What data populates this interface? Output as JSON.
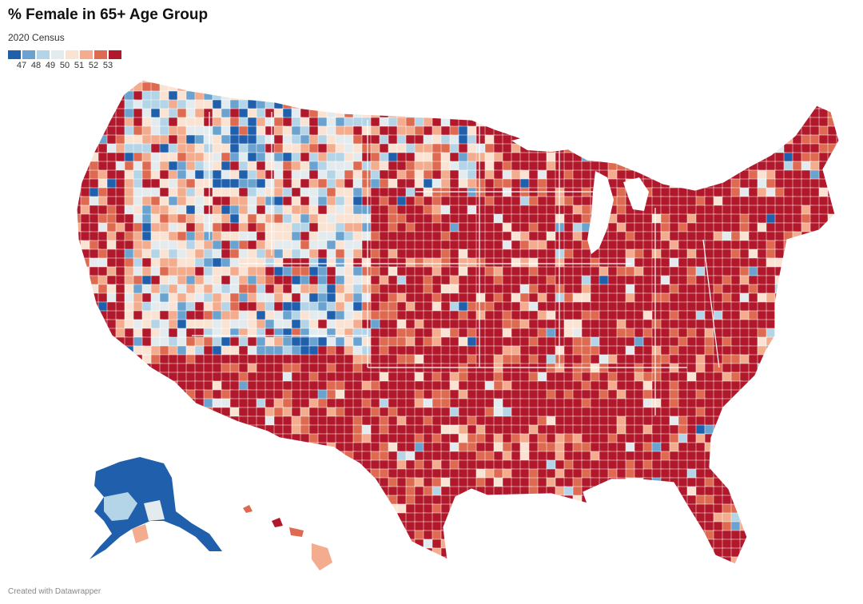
{
  "header": {
    "title": "% Female in 65+ Age Group",
    "subtitle": "2020 Census"
  },
  "legend": {
    "colors": [
      "#1f5fab",
      "#6aa3d0",
      "#b4d4e7",
      "#e4ebee",
      "#fbe3d4",
      "#f3ac8d",
      "#de6a51",
      "#b2182b"
    ],
    "labels": [
      "47",
      "48",
      "49",
      "50",
      "51",
      "52",
      "53"
    ]
  },
  "map": {
    "type": "choropleth",
    "geography": "US counties",
    "regions": [
      {
        "name": "Lower 48",
        "dominant_class": 7
      },
      {
        "name": "Alaska",
        "dominant_class": 0
      },
      {
        "name": "Hawaii",
        "dominant_class": 5
      }
    ]
  },
  "footer": {
    "credit": "Created with Datawrapper"
  }
}
